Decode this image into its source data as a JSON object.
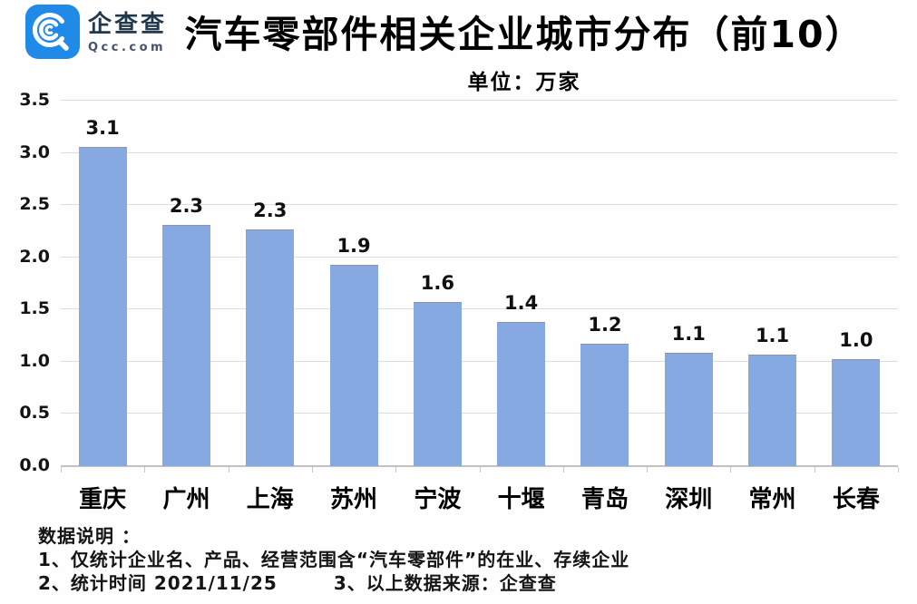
{
  "logo": {
    "name": "企查查",
    "domain": "Qcc.com",
    "brand_color": "#1f8ae8",
    "text_color": "#22384e"
  },
  "header": {
    "title": "汽车零部件相关企业城市分布（前10）",
    "subtitle": "单位：万家"
  },
  "chart_data": {
    "type": "bar",
    "title": "汽车零部件相关企业城市分布（前10）",
    "unit_label": "单位：万家",
    "categories": [
      "重庆",
      "广州",
      "上海",
      "苏州",
      "宁波",
      "十堰",
      "青岛",
      "深圳",
      "常州",
      "长春"
    ],
    "values": [
      3.1,
      2.3,
      2.3,
      1.9,
      1.6,
      1.4,
      1.2,
      1.1,
      1.1,
      1.0
    ],
    "bar_heights": [
      3.05,
      2.3,
      2.26,
      1.92,
      1.56,
      1.37,
      1.16,
      1.08,
      1.06,
      1.02
    ],
    "xlabel": "",
    "ylabel": "",
    "ylim": [
      0,
      3.5
    ],
    "yticks": [
      "0.0",
      "0.5",
      "1.0",
      "1.5",
      "2.0",
      "2.5",
      "3.0",
      "3.5"
    ],
    "grid": true,
    "legend": "none",
    "bar_color": "#87a9e2",
    "gridline_color": "#dcdcdc"
  },
  "footnotes": {
    "heading": "数据说明 ：",
    "line1": "1、仅统计企业名、产品、经营范围含“汽车零部件”的在业、存续企业",
    "line2_left": "2、统计时间 2021/11/25",
    "line2_right": "3、以上数据来源：企查查"
  }
}
